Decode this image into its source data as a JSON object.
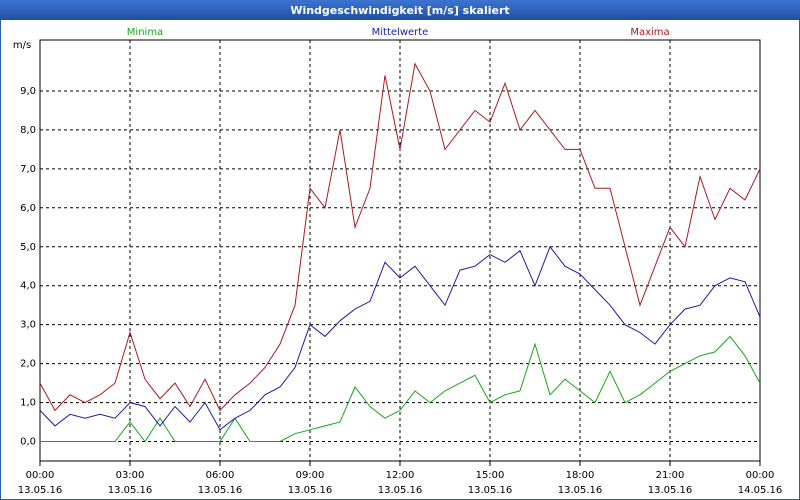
{
  "chart_data": {
    "type": "line",
    "title": "Windgeschwindigkeit [m/s] skaliert",
    "y_label": "m/s",
    "x": [
      0,
      0.5,
      1,
      1.5,
      2,
      2.5,
      3,
      3.5,
      4,
      4.5,
      5,
      5.5,
      6,
      6.5,
      7,
      7.5,
      8,
      8.5,
      9,
      9.5,
      10,
      10.5,
      11,
      11.5,
      12,
      12.5,
      13,
      13.5,
      14,
      14.5,
      15,
      15.5,
      16,
      16.5,
      17,
      17.5,
      18,
      18.5,
      19,
      19.5,
      20,
      20.5,
      21,
      21.5,
      22,
      22.5,
      23,
      23.5,
      24
    ],
    "series": [
      {
        "name": "Minima",
        "color": "#1aa51a",
        "values": [
          0,
          0,
          0,
          0,
          0,
          0,
          0.5,
          0,
          0.6,
          0,
          0,
          0,
          0,
          0.6,
          0,
          0,
          0,
          0.2,
          0.3,
          0.4,
          0.5,
          1.4,
          0.9,
          0.6,
          0.8,
          1.3,
          1.0,
          1.3,
          1.5,
          1.7,
          1.0,
          1.2,
          1.3,
          2.5,
          1.2,
          1.6,
          1.3,
          1.0,
          1.8,
          1.0,
          1.2,
          1.5,
          1.8,
          2.0,
          2.2,
          2.3,
          2.7,
          2.2,
          1.5
        ]
      },
      {
        "name": "Mittelwerte",
        "color": "#1c1ca8",
        "values": [
          0.8,
          0.4,
          0.7,
          0.6,
          0.7,
          0.6,
          1.0,
          0.9,
          0.4,
          0.9,
          0.5,
          1.0,
          0.3,
          0.6,
          0.8,
          1.2,
          1.4,
          1.9,
          3.0,
          2.7,
          3.1,
          3.4,
          3.6,
          4.6,
          4.2,
          4.5,
          4.0,
          3.5,
          4.4,
          4.5,
          4.8,
          4.6,
          4.9,
          4.0,
          5.0,
          4.5,
          4.3,
          3.9,
          3.5,
          3.0,
          2.8,
          2.5,
          3.0,
          3.4,
          3.5,
          4.0,
          4.2,
          4.1,
          3.2
        ]
      },
      {
        "name": "Maxima",
        "color": "#a81c1c",
        "values": [
          1.5,
          0.8,
          1.2,
          1.0,
          1.2,
          1.5,
          2.8,
          1.6,
          1.1,
          1.5,
          0.9,
          1.6,
          0.8,
          1.2,
          1.5,
          1.9,
          2.5,
          3.5,
          6.5,
          6.0,
          8.0,
          5.5,
          6.5,
          9.4,
          7.5,
          9.7,
          9.0,
          7.5,
          8.0,
          8.5,
          8.2,
          9.2,
          8.0,
          8.5,
          8.0,
          7.5,
          7.5,
          6.5,
          6.5,
          5.0,
          3.5,
          4.5,
          5.5,
          5.0,
          6.8,
          5.7,
          6.5,
          6.2,
          7.0
        ]
      }
    ],
    "xlim": [
      0,
      24
    ],
    "xticks": [
      {
        "value": 0,
        "label": "00:00"
      },
      {
        "value": 3,
        "label": "03:00"
      },
      {
        "value": 6,
        "label": "06:00"
      },
      {
        "value": 9,
        "label": "09:00"
      },
      {
        "value": 12,
        "label": "12:00"
      },
      {
        "value": 15,
        "label": "15:00"
      },
      {
        "value": 18,
        "label": "18:00"
      },
      {
        "value": 21,
        "label": "21:00"
      },
      {
        "value": 24,
        "label": "00:00"
      }
    ],
    "xtick_dates": [
      "13.05.16",
      "13.05.16",
      "13.05.16",
      "13.05.16",
      "13.05.16",
      "13.05.16",
      "13.05.16",
      "13.05.16",
      "14.05.16"
    ],
    "ylim": [
      -0.5,
      10
    ],
    "yticks": [
      {
        "value": 0,
        "label": "0,0"
      },
      {
        "value": 1,
        "label": "1,0"
      },
      {
        "value": 2,
        "label": "2,0"
      },
      {
        "value": 3,
        "label": "3,0"
      },
      {
        "value": 4,
        "label": "4,0"
      },
      {
        "value": 5,
        "label": "5,0"
      },
      {
        "value": 6,
        "label": "6,0"
      },
      {
        "value": 7,
        "label": "7,0"
      },
      {
        "value": 8,
        "label": "8,0"
      },
      {
        "value": 9,
        "label": "9,0"
      }
    ],
    "grid": true
  }
}
